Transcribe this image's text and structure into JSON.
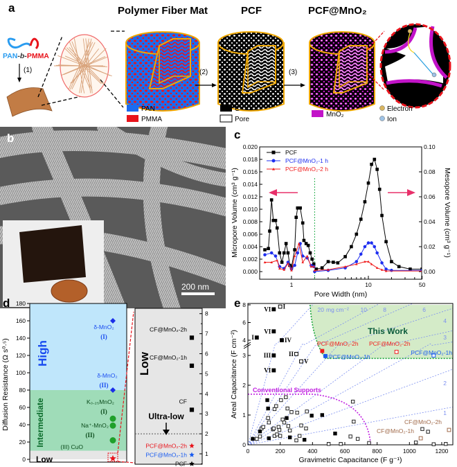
{
  "panel_a": {
    "label": "a",
    "titles": [
      "Polymer Fiber Mat",
      "PCF",
      "PCF@MnO₂"
    ],
    "copolymer": {
      "pan": "PAN",
      "b": "-b-",
      "pmma": "PMMA"
    },
    "steps": [
      "(1)",
      "(2)",
      "(3)"
    ],
    "legend": [
      {
        "label": "PAN",
        "color": "#1a6cf0"
      },
      {
        "label": "PMMA",
        "color": "#e8141c"
      },
      {
        "label": "C",
        "color": "#000000"
      },
      {
        "label": "Pore",
        "color": "#ffffff"
      },
      {
        "label": "MnO₂",
        "color": "#c213c8"
      },
      {
        "label": "Electron",
        "color": "#d9b560"
      },
      {
        "label": "Ion",
        "color": "#9ec3e6"
      }
    ]
  },
  "panel_b": {
    "label": "b",
    "scale_bar": "200 nm"
  },
  "chart_data": [
    {
      "panel": "c",
      "type": "line",
      "xlabel": "Pore Width (nm)",
      "ylabel": "Micropore Volume (cm³ g⁻¹)",
      "y2label": "Mesopore Volume (cm³ g⁻¹)",
      "xscale": "log",
      "xlim": [
        0.4,
        50
      ],
      "ylim": [
        0,
        0.02
      ],
      "y2lim": [
        0,
        0.1
      ],
      "xticks": [
        "1",
        "10",
        "50"
      ],
      "yticks": [
        "0.000",
        "0.002",
        "0.004",
        "0.006",
        "0.008",
        "0.010",
        "0.012",
        "0.014",
        "0.016",
        "0.018",
        "0.020"
      ],
      "y2ticks": [
        "0.00",
        "0.02",
        "0.04",
        "0.06",
        "0.08",
        "0.10"
      ],
      "divider_x": 2,
      "legend_position": "top-left",
      "series": [
        {
          "name": "PCF",
          "color": "#000000",
          "marker": "square",
          "micropore": [
            [
              0.45,
              0.0035
            ],
            [
              0.5,
              0.0037
            ],
            [
              0.52,
              0.0065
            ],
            [
              0.55,
              0.0115
            ],
            [
              0.58,
              0.0082
            ],
            [
              0.62,
              0.0082
            ],
            [
              0.65,
              0.007
            ],
            [
              0.7,
              0.003
            ],
            [
              0.75,
              0.0015
            ],
            [
              0.8,
              0.003
            ],
            [
              0.85,
              0.0045
            ],
            [
              0.9,
              0.003
            ],
            [
              0.95,
              0.001
            ],
            [
              1.0,
              0.0007
            ],
            [
              1.1,
              0.0035
            ],
            [
              1.15,
              0.0087
            ],
            [
              1.2,
              0.0102
            ],
            [
              1.3,
              0.0102
            ],
            [
              1.4,
              0.0078
            ],
            [
              1.45,
              0.005
            ],
            [
              1.55,
              0.0045
            ],
            [
              1.65,
              0.0042
            ],
            [
              1.75,
              0.003
            ],
            [
              1.85,
              0.002
            ],
            [
              1.95,
              0.0012
            ]
          ],
          "mesopore": [
            [
              2.1,
              0.002
            ],
            [
              2.5,
              0.003
            ],
            [
              3,
              0.008
            ],
            [
              3.5,
              0.0075
            ],
            [
              4,
              0.007
            ],
            [
              5,
              0.012
            ],
            [
              6,
              0.02
            ],
            [
              7,
              0.03
            ],
            [
              8,
              0.042
            ],
            [
              9,
              0.056
            ],
            [
              10,
              0.071
            ],
            [
              11,
              0.086
            ],
            [
              12,
              0.09
            ],
            [
              13,
              0.082
            ],
            [
              14,
              0.066
            ],
            [
              15,
              0.045
            ],
            [
              17,
              0.024
            ],
            [
              20,
              0.008
            ],
            [
              25,
              0.004
            ],
            [
              35,
              0.002
            ],
            [
              50,
              0.002
            ]
          ]
        },
        {
          "name": "PCF@MnO₂-1 h",
          "color": "#1f2ff0",
          "marker": "circle",
          "micropore": [
            [
              0.45,
              0.0027
            ],
            [
              0.55,
              0.003
            ],
            [
              0.62,
              0.0025
            ],
            [
              0.7,
              0.0008
            ],
            [
              0.8,
              0.0005
            ],
            [
              0.9,
              0.0015
            ],
            [
              1.0,
              0.0004
            ],
            [
              1.1,
              0.001
            ],
            [
              1.2,
              0.003
            ],
            [
              1.3,
              0.0045
            ],
            [
              1.4,
              0.0025
            ],
            [
              1.6,
              0.0022
            ],
            [
              1.8,
              0.001
            ],
            [
              1.95,
              0.0008
            ]
          ],
          "mesopore": [
            [
              2,
              0.0
            ],
            [
              3,
              0.001
            ],
            [
              5,
              0.003
            ],
            [
              7,
              0.008
            ],
            [
              8,
              0.014
            ],
            [
              9,
              0.02
            ],
            [
              10,
              0.023
            ],
            [
              11,
              0.023
            ],
            [
              12,
              0.02
            ],
            [
              13,
              0.015
            ],
            [
              15,
              0.007
            ],
            [
              17,
              0.002
            ],
            [
              20,
              0.001
            ],
            [
              50,
              0.001
            ]
          ]
        },
        {
          "name": "PCF@MnO₂-2 h",
          "color": "#f01c1c",
          "marker": "triangle",
          "micropore": [
            [
              0.45,
              0.0015
            ],
            [
              0.55,
              0.0015
            ],
            [
              0.65,
              0.0018
            ],
            [
              0.7,
              0.0005
            ],
            [
              0.8,
              0.0003
            ],
            [
              0.9,
              0.0013
            ],
            [
              1.0,
              0.0002
            ],
            [
              1.1,
              0.0025
            ],
            [
              1.25,
              0.0045
            ],
            [
              1.4,
              0.0015
            ],
            [
              1.6,
              0.0025
            ],
            [
              1.8,
              0.0008
            ],
            [
              1.95,
              0.0008
            ]
          ],
          "mesopore": [
            [
              2,
              0.001
            ],
            [
              3,
              0.0015
            ],
            [
              5,
              0.004
            ],
            [
              7,
              0.006
            ],
            [
              9,
              0.008
            ],
            [
              10,
              0.008
            ],
            [
              11,
              0.006
            ],
            [
              13,
              0.003
            ],
            [
              15,
              0.0015
            ],
            [
              17,
              0.0005
            ],
            [
              50,
              0.0005
            ]
          ]
        }
      ]
    },
    {
      "panel": "d",
      "type": "scatter",
      "ylabel": "Diffusion Resistance (Ω s⁰·⁵)",
      "ylim": [
        0,
        180
      ],
      "yticks": [
        "0",
        "20",
        "40",
        "60",
        "80",
        "100",
        "120",
        "140",
        "160",
        "180"
      ],
      "regions": [
        {
          "label": "High",
          "from": 80,
          "to": 180,
          "color": "#bfe6fb"
        },
        {
          "label": "Intermediate",
          "from": 10,
          "to": 80,
          "color": "#9fdcb8"
        },
        {
          "label": "Low",
          "from": 0,
          "to": 10,
          "color": "#e6e6e6"
        }
      ],
      "points": [
        {
          "label": "δ-MnO₂",
          "sub": "(I)",
          "value": 160,
          "marker": "diamond",
          "color": "#1a2ee8"
        },
        {
          "label": "δ-MnO₂",
          "sub": "(II)",
          "value": 80,
          "marker": "diamond",
          "color": "#1a2ee8"
        },
        {
          "label": "K₀.₂₅MnO₂",
          "sub": "(I)",
          "value": 47,
          "marker": "circle",
          "color": "#1fa02a"
        },
        {
          "label": "Na⁺-MnO₂",
          "sub": "(II)",
          "value": 39,
          "marker": "circle",
          "color": "#1fa02a"
        },
        {
          "label": "(III) CuO",
          "sub": "",
          "value": 22,
          "marker": "circle",
          "color": "#1fa02a"
        },
        {
          "label": "",
          "sub": "",
          "value": 1,
          "marker": "star",
          "color": "#e8141c"
        }
      ],
      "inset": {
        "region_label": "Low",
        "ultra_low_label": "Ultra-low",
        "ylim": [
          0.5,
          8
        ],
        "yticks": [
          "1",
          "2",
          "3",
          "4",
          "5",
          "6",
          "7",
          "8"
        ],
        "threshold": 2,
        "points": [
          {
            "label": "CF@MnO₂-2h",
            "value": 6.8,
            "marker": "square",
            "color": "#000000"
          },
          {
            "label": "CF@MnO₂-1h",
            "value": 5.4,
            "marker": "square",
            "color": "#000000"
          },
          {
            "label": "CF",
            "value": 3.2,
            "marker": "square",
            "color": "#000000"
          },
          {
            "label": "PCF@MnO₂-2h",
            "value": 1.4,
            "marker": "star",
            "color": "#e8141c"
          },
          {
            "label": "PCF@MnO₂-1h",
            "value": 0.95,
            "marker": "star",
            "color": "#1a5cf0"
          },
          {
            "label": "PCF",
            "value": 0.5,
            "marker": "star",
            "color": "#000000"
          }
        ]
      }
    },
    {
      "panel": "e",
      "type": "scatter",
      "xlabel": "Gravimetric Capacitance (F g⁻¹)",
      "ylabel": "Areal Capacitance (F cm⁻²)",
      "xlim": [
        0,
        1300
      ],
      "ylim": [
        0,
        8
      ],
      "y_axis_break": [
        3.4,
        3.8
      ],
      "xticks": [
        "0",
        "200",
        "400",
        "600",
        "800",
        "1000",
        "1200"
      ],
      "yticks": [
        "0",
        "1",
        "2",
        "3",
        "4",
        "6",
        "8"
      ],
      "loading_lines": {
        "values": [
          20,
          10,
          8,
          6,
          4,
          3,
          2,
          1
        ],
        "unit_label": "mg cm⁻²",
        "color": "#7b8ff0"
      },
      "regions": [
        {
          "label": "This Work",
          "color": "#d4ebc8",
          "border": "#1aa53a"
        },
        {
          "label": "Conventional Supports",
          "border": "#c020e0"
        }
      ],
      "labeled_points": [
        {
          "label": "PCF@MnO₂-2h",
          "x": 460,
          "y": 3.15,
          "filled": true,
          "color": "#f01c1c"
        },
        {
          "label": "PCF@MnO₂-1h",
          "x": 480,
          "y": 2.98,
          "filled": true,
          "color": "#1a5cf0"
        },
        {
          "label": "PCF@MnO₂-2h",
          "x": 920,
          "y": 3.12,
          "filled": false,
          "color": "#f01c1c"
        },
        {
          "label": "PCF@MnO₂-1h",
          "x": 1150,
          "y": 3.0,
          "filled": false,
          "color": "#1a5cf0"
        },
        {
          "label": "CF@MnO₂-2h",
          "x": 1245,
          "y": 0.5,
          "filled": false,
          "color": "#a06a4a"
        },
        {
          "label": "CF@MnO₂-1h",
          "x": 1070,
          "y": 0.22,
          "filled": false,
          "color": "#a06a4a"
        },
        {
          "label": "I",
          "x": 55,
          "y": 4.3,
          "filled": true,
          "color": "#000000"
        },
        {
          "label": "VI",
          "x": 160,
          "y": 7.5,
          "filled": true,
          "color": "#000000"
        },
        {
          "label": "I",
          "x": 200,
          "y": 7.8,
          "filled": false,
          "color": "#000000"
        },
        {
          "label": "VI",
          "x": 160,
          "y": 5.0,
          "filled": true,
          "color": "#000000"
        },
        {
          "label": "IV",
          "x": 210,
          "y": 4.0,
          "filled": true,
          "color": "#000000"
        },
        {
          "label": "III",
          "x": 160,
          "y": 3.0,
          "filled": true,
          "color": "#000000"
        },
        {
          "label": "VI",
          "x": 160,
          "y": 2.5,
          "filled": true,
          "color": "#000000"
        },
        {
          "label": "II",
          "x": 300,
          "y": 3.05,
          "filled": false,
          "color": "#000000"
        },
        {
          "label": "V",
          "x": 330,
          "y": 2.8,
          "filled": false,
          "color": "#000000"
        }
      ],
      "filled_points": [
        [
          30,
          0.2
        ],
        [
          75,
          0.45
        ],
        [
          120,
          1.5
        ],
        [
          125,
          1.22
        ],
        [
          130,
          0.22
        ],
        [
          240,
          0.9
        ],
        [
          260,
          0.25
        ],
        [
          350,
          0.17
        ],
        [
          395,
          0.98
        ],
        [
          460,
          1.0
        ],
        [
          540,
          0.38
        ]
      ],
      "open_points": [
        [
          55,
          0.2
        ],
        [
          75,
          0.28
        ],
        [
          85,
          0.55
        ],
        [
          95,
          0.6
        ],
        [
          125,
          0.9
        ],
        [
          130,
          0.75
        ],
        [
          155,
          0.52
        ],
        [
          160,
          0.55
        ],
        [
          165,
          0.3
        ],
        [
          165,
          1.2
        ],
        [
          175,
          1.3
        ],
        [
          180,
          0.35
        ],
        [
          190,
          0.6
        ],
        [
          195,
          0.5
        ],
        [
          200,
          0.3
        ],
        [
          205,
          1.5
        ],
        [
          215,
          0.85
        ],
        [
          225,
          0.75
        ],
        [
          235,
          1.6
        ],
        [
          245,
          1.22
        ],
        [
          250,
          0.63
        ],
        [
          260,
          0.48
        ],
        [
          270,
          1.1
        ],
        [
          300,
          0.15
        ],
        [
          305,
          1.08
        ],
        [
          320,
          0.3
        ],
        [
          330,
          0.65
        ],
        [
          360,
          0.55
        ],
        [
          365,
          1.12
        ],
        [
          500,
          0.03
        ],
        [
          575,
          0.03
        ],
        [
          635,
          0.28
        ],
        [
          650,
          1.45
        ],
        [
          655,
          0.78
        ],
        [
          680,
          0.2
        ],
        [
          750,
          0.06
        ],
        [
          1040,
          0.08
        ],
        [
          1080,
          0.53
        ],
        [
          1115,
          0.44
        ],
        [
          1150,
          0.02
        ],
        [
          1225,
          0.03
        ]
      ]
    }
  ],
  "panel_labels": {
    "c": "c",
    "d": "d",
    "e": "e"
  }
}
